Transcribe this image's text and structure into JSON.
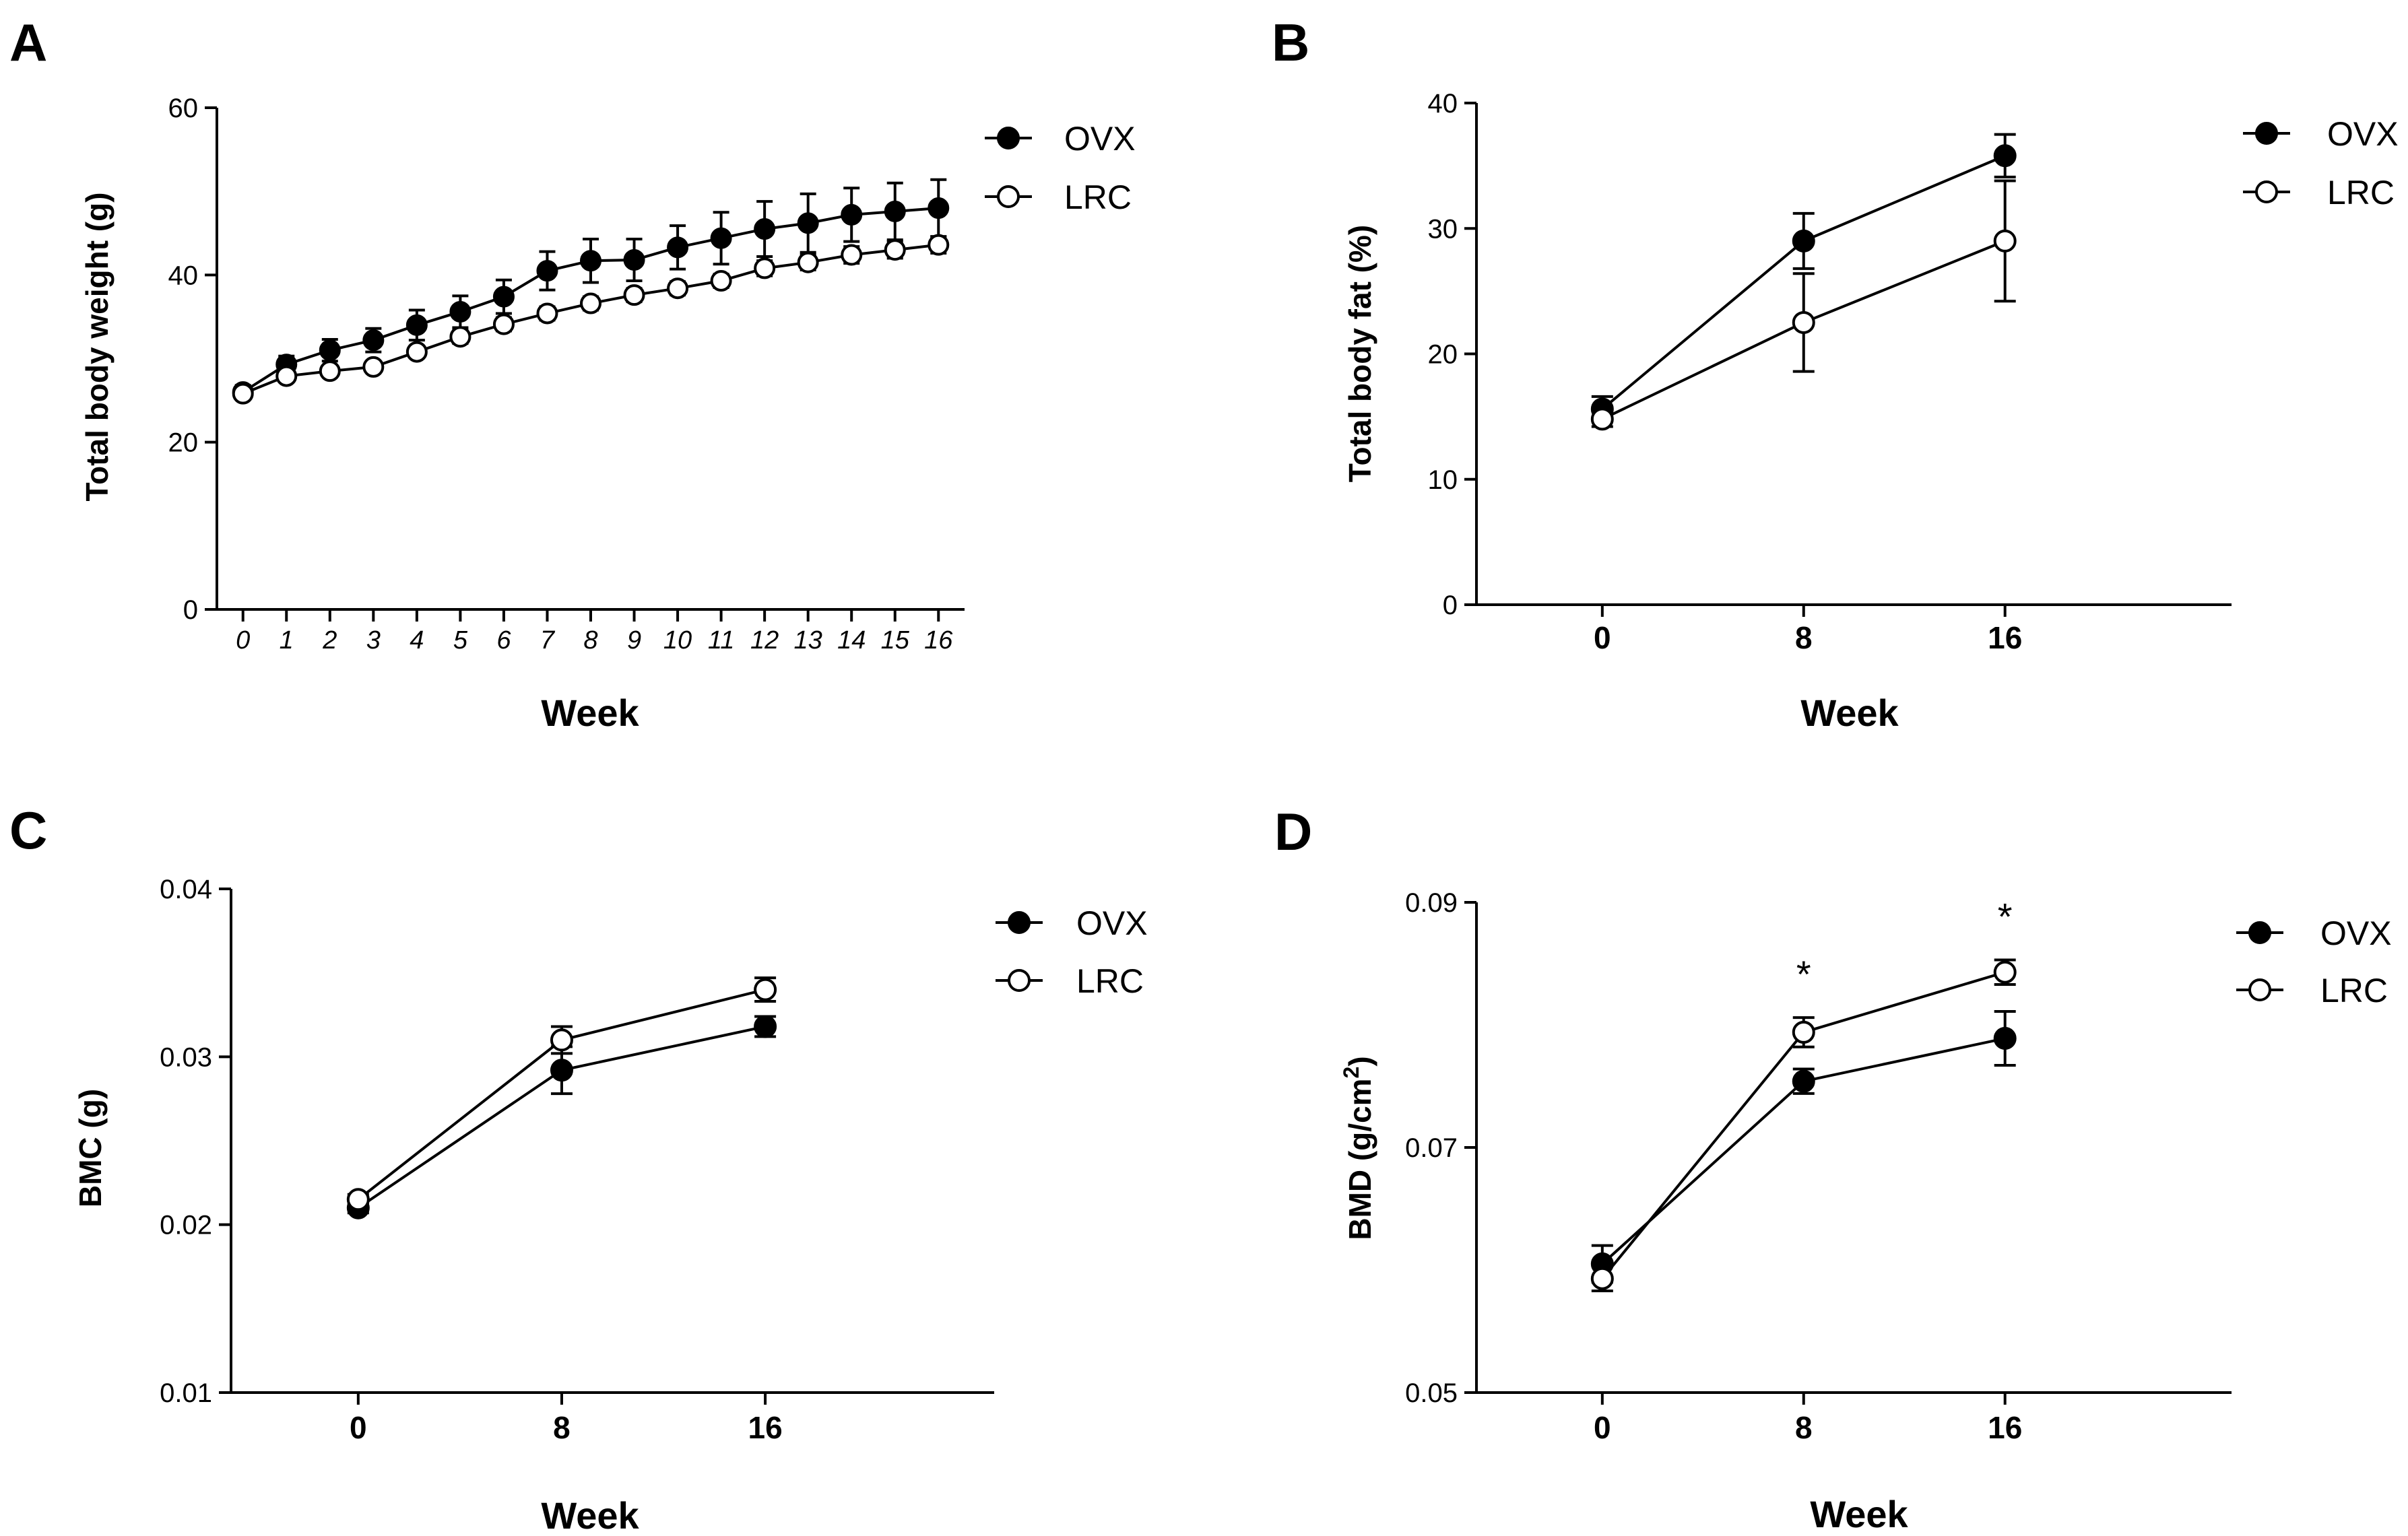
{
  "colors": {
    "line": "#000000",
    "filled": "#000000",
    "open_fill": "#ffffff"
  },
  "chart_data": [
    {
      "id": "A",
      "panel_label": "A",
      "type": "line",
      "xlabel": "Week",
      "ylabel": "Total body weight (g)",
      "ylim": [
        0,
        60
      ],
      "yticks": [
        0,
        20,
        40,
        60
      ],
      "x": [
        0,
        1,
        2,
        3,
        4,
        5,
        6,
        7,
        8,
        9,
        10,
        11,
        12,
        13,
        14,
        15,
        16
      ],
      "xtick_labels": [
        "0",
        "1",
        "2",
        "3",
        "4",
        "5",
        "6",
        "7",
        "8",
        "9",
        "10",
        "11",
        "12",
        "13",
        "14",
        "15",
        "16"
      ],
      "legend_position": "top-right",
      "series": [
        {
          "name": "OVX",
          "marker": "filled",
          "values": [
            26.0,
            29.3,
            31.0,
            32.2,
            34.0,
            35.6,
            37.4,
            40.5,
            41.7,
            41.8,
            43.3,
            44.4,
            45.5,
            46.2,
            47.2,
            47.6,
            48.0
          ],
          "errors": [
            0.8,
            1.0,
            1.3,
            1.4,
            1.8,
            1.9,
            2.0,
            2.3,
            2.6,
            2.5,
            2.6,
            3.1,
            3.3,
            3.5,
            3.2,
            3.4,
            3.4
          ]
        },
        {
          "name": "LRC",
          "marker": "open",
          "values": [
            25.8,
            27.9,
            28.5,
            29.0,
            30.8,
            32.6,
            34.1,
            35.4,
            36.6,
            37.6,
            38.4,
            39.3,
            40.8,
            41.5,
            42.4,
            43.0,
            43.6
          ],
          "errors": [
            0.5,
            0.5,
            0.6,
            0.6,
            0.7,
            0.8,
            0.8,
            0.8,
            0.8,
            0.8,
            0.8,
            0.8,
            0.9,
            0.9,
            1.0,
            1.0,
            1.0
          ]
        }
      ]
    },
    {
      "id": "B",
      "panel_label": "B",
      "type": "line",
      "xlabel": "Week",
      "ylabel": "Total body fat (%)",
      "ylim": [
        0,
        40
      ],
      "yticks": [
        0,
        10,
        20,
        30,
        40
      ],
      "x": [
        0,
        8,
        16
      ],
      "xtick_labels": [
        "0",
        "8",
        "16"
      ],
      "legend_position": "top-right",
      "series": [
        {
          "name": "OVX",
          "marker": "filled",
          "values": [
            15.6,
            29.0,
            35.8
          ],
          "errors": [
            1.0,
            2.2,
            1.7
          ]
        },
        {
          "name": "LRC",
          "marker": "open",
          "values": [
            14.8,
            22.5,
            29.0
          ],
          "errors": [
            0.6,
            3.9,
            4.8
          ]
        }
      ]
    },
    {
      "id": "C",
      "panel_label": "C",
      "type": "line",
      "xlabel": "Week",
      "ylabel": "BMC (g)",
      "ylim": [
        0.01,
        0.04
      ],
      "yticks": [
        "0.01",
        "0.02",
        "0.03",
        "0.04"
      ],
      "x": [
        0,
        8,
        16
      ],
      "xtick_labels": [
        "0",
        "8",
        "16"
      ],
      "legend_position": "top-right",
      "series": [
        {
          "name": "OVX",
          "marker": "filled",
          "values": [
            0.021,
            0.0292,
            0.0318
          ],
          "errors": [
            0.0003,
            0.0014,
            0.0006
          ]
        },
        {
          "name": "LRC",
          "marker": "open",
          "values": [
            0.0215,
            0.031,
            0.034
          ],
          "errors": [
            0.0003,
            0.0008,
            0.0007
          ]
        }
      ]
    },
    {
      "id": "D",
      "panel_label": "D",
      "type": "line",
      "xlabel": "Week",
      "ylabel": "BMD (g/cm",
      "ylabel_superscript": "2",
      "ylabel_suffix": ")",
      "ylim": [
        0.05,
        0.09
      ],
      "yticks": [
        "0.05",
        "0.07",
        "0.09"
      ],
      "x": [
        0,
        8,
        16
      ],
      "xtick_labels": [
        "0",
        "8",
        "16"
      ],
      "legend_position": "top-right",
      "annotations": [
        {
          "x": 8,
          "text": "*"
        },
        {
          "x": 16,
          "text": "*"
        }
      ],
      "series": [
        {
          "name": "OVX",
          "marker": "filled",
          "values": [
            0.0605,
            0.0754,
            0.0789
          ],
          "errors": [
            0.0015,
            0.001,
            0.0022
          ]
        },
        {
          "name": "LRC",
          "marker": "open",
          "values": [
            0.0593,
            0.0794,
            0.0843
          ],
          "errors": [
            0.001,
            0.0012,
            0.001
          ]
        }
      ]
    }
  ]
}
